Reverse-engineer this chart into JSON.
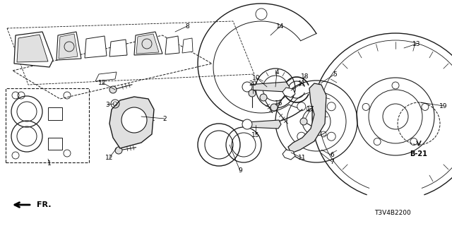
{
  "bg_color": "#ffffff",
  "footer_code": "T3V4B2200",
  "b21_label": "B-21",
  "fig_w": 6.4,
  "fig_h": 3.2,
  "dpi": 100,
  "line_color": "#1a1a1a",
  "gray_light": "#e0e0e0",
  "gray_med": "#b0b0b0",
  "gray_dark": "#808080"
}
